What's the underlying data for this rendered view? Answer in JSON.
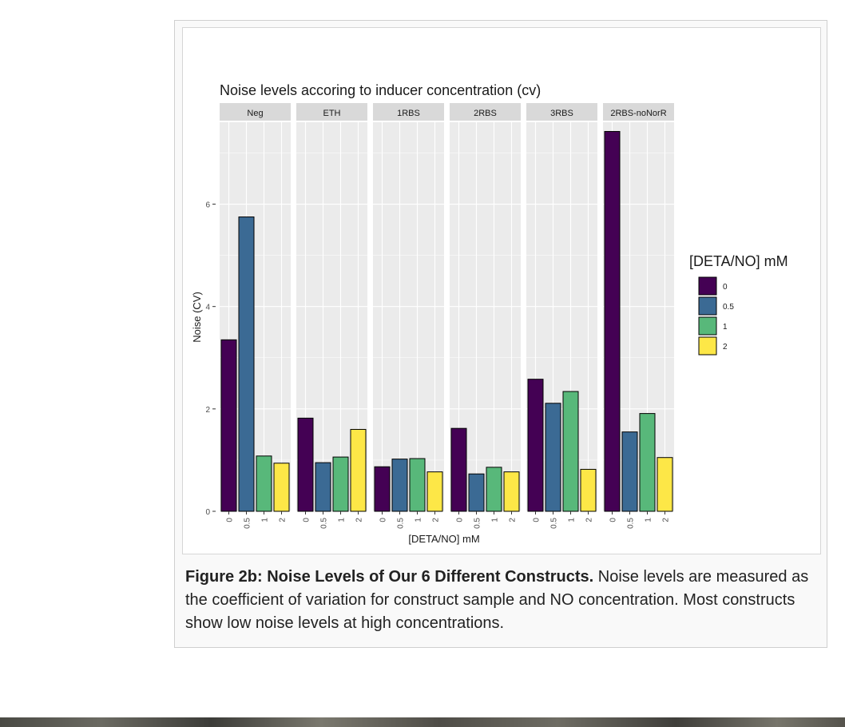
{
  "chart_data": {
    "type": "bar",
    "title": "Noise levels accoring to inducer concentration (cv)",
    "xlabel": "[DETA/NO] mM",
    "ylabel": "Noise (CV)",
    "ylim": [
      0,
      7.6
    ],
    "yticks": [
      "0",
      "2",
      "4",
      "6"
    ],
    "grid": true,
    "legend": {
      "title": "[DETA/NO] mM",
      "placement": "right"
    },
    "categories": [
      "0",
      "0.5",
      "1",
      "2"
    ],
    "colors": [
      "#440154",
      "#3B6A94",
      "#58B87A",
      "#FDE747"
    ],
    "facets": [
      {
        "name": "Neg",
        "values": [
          3.35,
          5.75,
          1.08,
          0.94
        ]
      },
      {
        "name": "ETH",
        "values": [
          1.82,
          0.95,
          1.06,
          1.6
        ]
      },
      {
        "name": "1RBS",
        "values": [
          0.87,
          1.02,
          1.03,
          0.77
        ]
      },
      {
        "name": "2RBS",
        "values": [
          1.62,
          0.73,
          0.86,
          0.77
        ]
      },
      {
        "name": "3RBS",
        "values": [
          2.58,
          2.11,
          2.34,
          0.82
        ]
      },
      {
        "name": "2RBS-noNorR",
        "values": [
          7.42,
          1.55,
          1.91,
          1.05
        ]
      }
    ]
  },
  "caption": {
    "bold": "Figure 2b: Noise Levels of Our 6 Different Constructs.",
    "text": " Noise levels are measured as the coefficient of variation for construct sample and NO concentration. Most constructs show low noise levels at high concentrations."
  }
}
